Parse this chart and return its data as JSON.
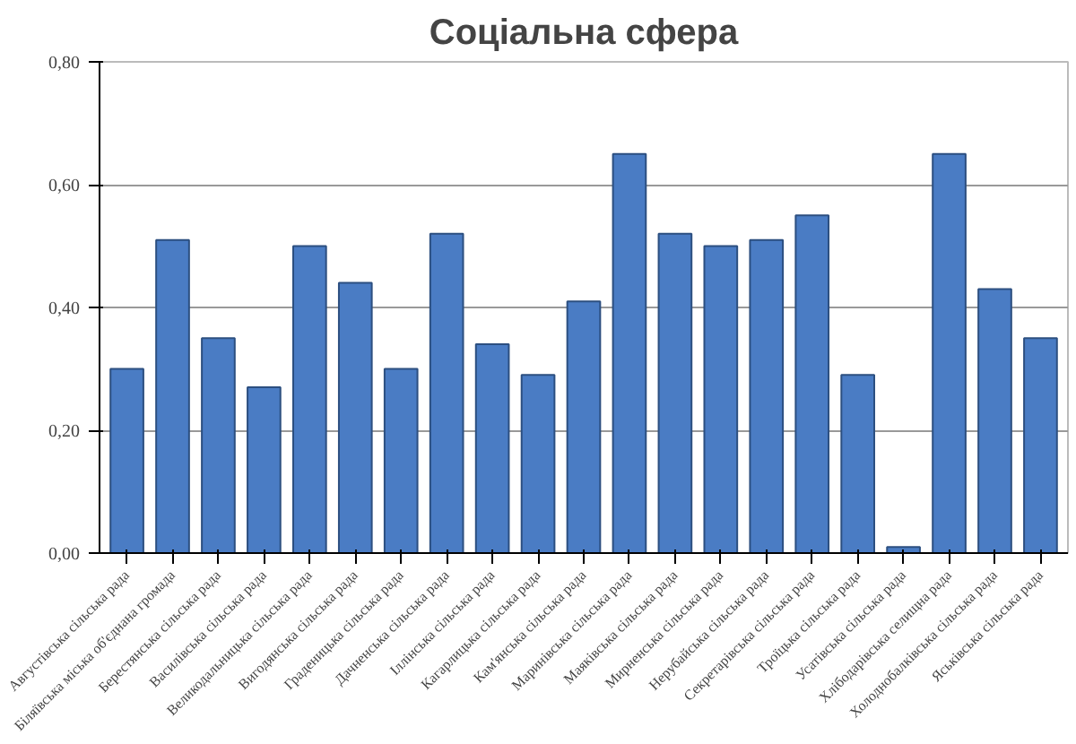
{
  "chart_data": {
    "type": "bar",
    "title": "Соціальна сфера",
    "categories": [
      "Августівська сільська рада",
      "Біляївська міська об'єднана громада",
      "Берестянська сільська рада",
      "Василівська сільська рада",
      "Великодальницька сільська рада",
      "Вигодянська сільська рада",
      "Граденицька сільська рада",
      "Дачненська сільська рада",
      "Іллінська сільська рада",
      "Кагарлицька сільська рада",
      "Кам'янська сільська рада",
      "Маринівська сільська рада",
      "Маяківська сільська рада",
      "Мирненська сільська рада",
      "Нерубайська сільська рада",
      "Секретарівська сільська рада",
      "Троїцька сільська рада",
      "Усатівська сільська рада",
      "Хлібодарівська селищна рада",
      "Холоднобалківська сільська рада",
      "Яськівська сільська рада"
    ],
    "values": [
      0.3,
      0.51,
      0.35,
      0.27,
      0.5,
      0.44,
      0.3,
      0.52,
      0.34,
      0.29,
      0.41,
      0.65,
      0.52,
      0.5,
      0.51,
      0.55,
      0.29,
      0.01,
      0.65,
      0.43,
      0.35
    ],
    "color": "#4a7cc4",
    "ylim": [
      0,
      0.8
    ],
    "yticks": [
      {
        "value": 0,
        "label": "0,00"
      },
      {
        "value": 0.2,
        "label": "0,20"
      },
      {
        "value": 0.4,
        "label": "0,40"
      },
      {
        "value": 0.6,
        "label": "0,60"
      },
      {
        "value": 0.8,
        "label": "0,80"
      }
    ],
    "grid": "y"
  }
}
